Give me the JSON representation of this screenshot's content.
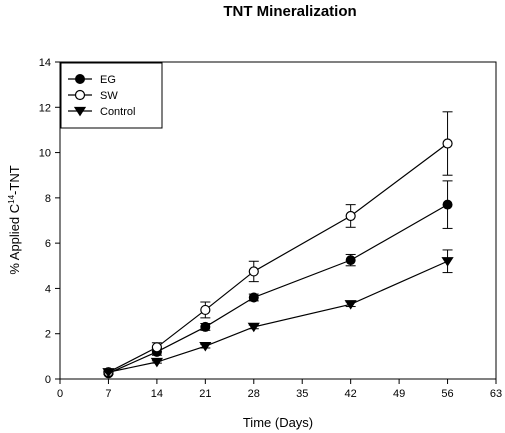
{
  "chart_data": {
    "type": "line",
    "title": "TNT Mineralization",
    "xlabel": "Time (Days)",
    "ylabel": {
      "prefix": "% Applied C",
      "superscript": "14",
      "suffix": "-TNT"
    },
    "xlim": [
      0,
      63
    ],
    "ylim": [
      0,
      14
    ],
    "xticks": [
      0,
      7,
      14,
      21,
      28,
      35,
      42,
      49,
      56,
      63
    ],
    "yticks": [
      0,
      2,
      4,
      6,
      8,
      10,
      12,
      14
    ],
    "grid": false,
    "legend_position": "top-left",
    "series": [
      {
        "name": "EG",
        "marker": "filled-circle",
        "x": [
          7,
          14,
          21,
          28,
          42,
          56
        ],
        "y": [
          0.25,
          1.2,
          2.3,
          3.6,
          5.25,
          7.7
        ],
        "err": [
          0.05,
          0.15,
          0.15,
          0.15,
          0.25,
          1.05
        ]
      },
      {
        "name": "SW",
        "marker": "open-circle",
        "x": [
          7,
          14,
          21,
          28,
          42,
          56
        ],
        "y": [
          0.3,
          1.4,
          3.05,
          4.75,
          7.2,
          10.4
        ],
        "err": [
          0.05,
          0.2,
          0.35,
          0.45,
          0.5,
          1.4
        ]
      },
      {
        "name": "Control",
        "marker": "filled-triangle-down",
        "x": [
          7,
          14,
          21,
          28,
          42,
          56
        ],
        "y": [
          0.3,
          0.75,
          1.45,
          2.3,
          3.3,
          5.2
        ],
        "err": [
          0.03,
          0.05,
          0.08,
          0.08,
          0.1,
          0.5
        ]
      }
    ]
  }
}
